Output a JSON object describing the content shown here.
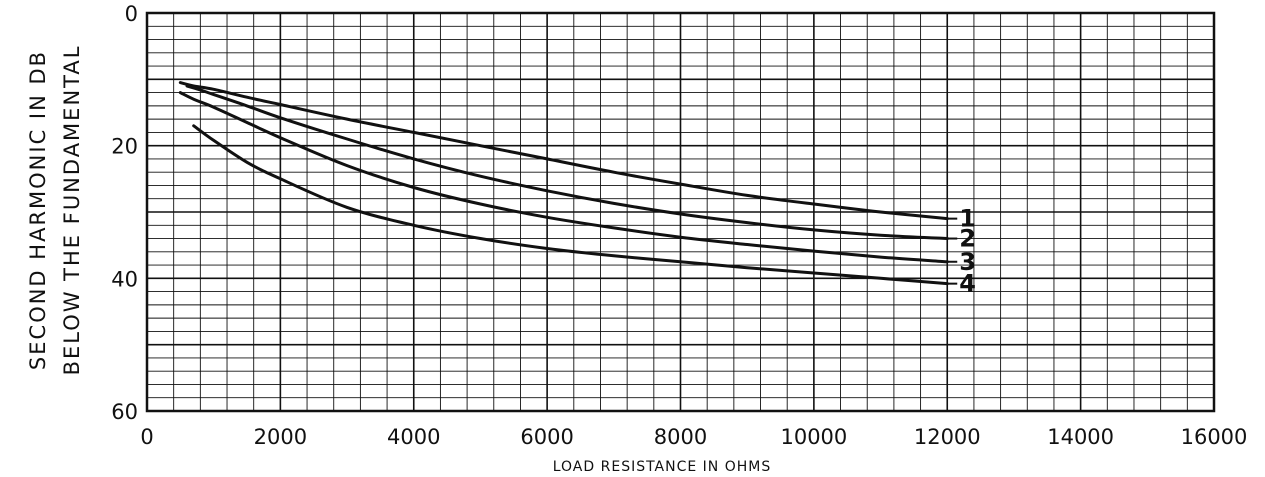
{
  "chart_data": {
    "type": "line",
    "xlabel": "LOAD RESISTANCE IN OHMS",
    "ylabel_line1": "SECOND HARMONIC IN DB",
    "ylabel_line2": "BELOW THE FUNDAMENTAL",
    "xlim": [
      0,
      16000
    ],
    "ylim": [
      0,
      60
    ],
    "y_inverted": true,
    "grid": true,
    "x_ticks": [
      0,
      2000,
      4000,
      6000,
      8000,
      10000,
      12000,
      14000,
      16000
    ],
    "y_ticks": [
      0,
      20,
      40,
      60
    ],
    "x_minor_step": 400,
    "y_minor_step": 2,
    "series": [
      {
        "name": "1",
        "x": [
          500,
          700,
          1000,
          1500,
          2000,
          3000,
          4000,
          5000,
          6000,
          7000,
          8000,
          9000,
          10000,
          11000,
          12000
        ],
        "y": [
          10.5,
          11.0,
          11.5,
          12.7,
          13.8,
          16.0,
          18.0,
          20.0,
          22.0,
          24.0,
          25.8,
          27.5,
          28.8,
          30.0,
          31.0
        ]
      },
      {
        "name": "2",
        "x": [
          600,
          800,
          1000,
          1500,
          2000,
          3000,
          4000,
          5000,
          6000,
          7000,
          8000,
          9000,
          10000,
          11000,
          12000
        ],
        "y": [
          11.0,
          11.6,
          12.3,
          14.0,
          15.8,
          19.0,
          22.0,
          24.6,
          26.8,
          28.7,
          30.3,
          31.6,
          32.7,
          33.5,
          34.0
        ]
      },
      {
        "name": "3",
        "x": [
          500,
          700,
          1000,
          1500,
          2000,
          3000,
          4000,
          5000,
          6000,
          7000,
          8000,
          9000,
          10000,
          11000,
          12000
        ],
        "y": [
          12.0,
          13.0,
          14.2,
          16.5,
          18.8,
          23.0,
          26.3,
          28.8,
          30.8,
          32.4,
          33.8,
          34.9,
          35.9,
          36.8,
          37.5
        ]
      },
      {
        "name": "4",
        "x": [
          700,
          1000,
          1500,
          2000,
          3000,
          4000,
          5000,
          6000,
          7000,
          8000,
          9000,
          10000,
          11000,
          12000
        ],
        "y": [
          17.0,
          19.2,
          22.5,
          25.0,
          29.3,
          32.0,
          34.0,
          35.5,
          36.6,
          37.5,
          38.4,
          39.2,
          40.0,
          40.8
        ]
      }
    ]
  }
}
